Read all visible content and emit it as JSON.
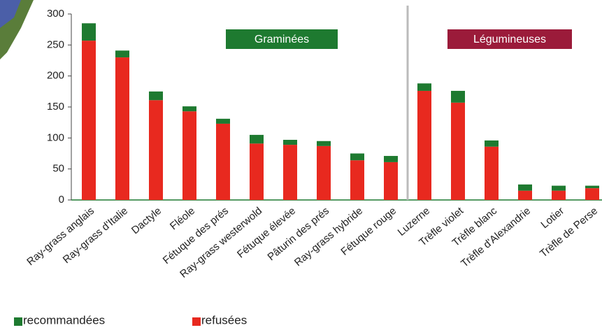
{
  "chart_data": {
    "type": "stacked_bar",
    "categories": [
      "Ray-grass anglais",
      "Ray-grass d'Italie",
      "Dactyle",
      "Fléole",
      "Fétuque des prés",
      "Ray-grass westerwold",
      "Fétuque élevée",
      "Pâturin des prés",
      "Ray-grass hybride",
      "Fétuque rouge",
      "Luzerne",
      "Trèfle violet",
      "Trèfle blanc",
      "Trèfle d'Alexandrie",
      "Lotier",
      "Trèfle de Perse"
    ],
    "series": [
      {
        "name": "recommandées",
        "color": "#1e7a30",
        "values": [
          28,
          11,
          14,
          8,
          8,
          14,
          8,
          8,
          11,
          10,
          12,
          19,
          10,
          10,
          8,
          4
        ]
      },
      {
        "name": "refusées",
        "color": "#e8291f",
        "values": [
          257,
          230,
          161,
          143,
          123,
          91,
          89,
          87,
          64,
          61,
          176,
          157,
          86,
          15,
          15,
          19
        ]
      }
    ],
    "groups": [
      {
        "label": "Graminées",
        "color": "#1e7a30"
      },
      {
        "label": "Légumineuses",
        "color": "#9b1b3a"
      }
    ],
    "ylim": [
      0,
      300
    ],
    "yticks": [
      0,
      50,
      100,
      150,
      200,
      250,
      300
    ]
  }
}
